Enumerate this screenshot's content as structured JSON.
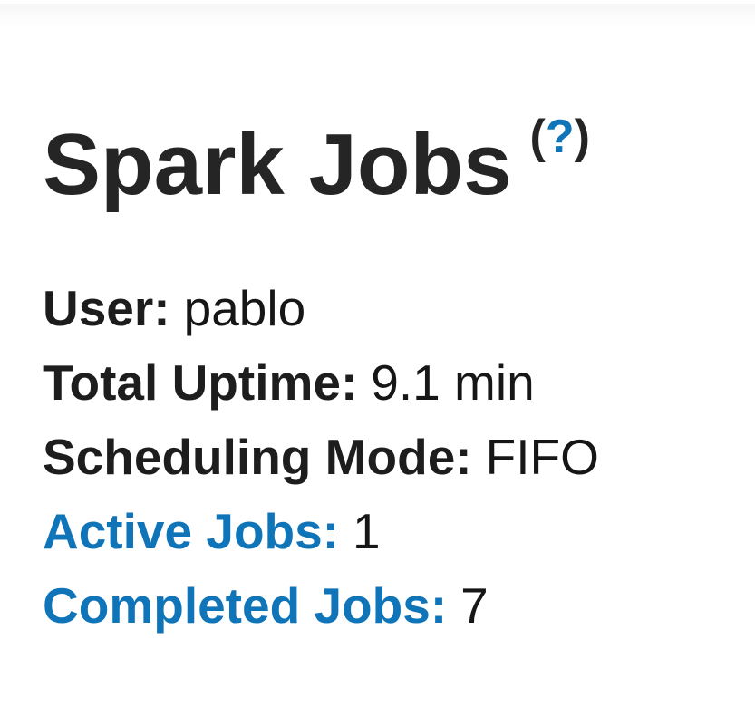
{
  "page": {
    "title": "Spark Jobs",
    "help": {
      "paren_open": "(",
      "symbol": "?",
      "paren_close": ")"
    }
  },
  "summary": {
    "items": [
      {
        "label": "User:",
        "value": "pablo"
      },
      {
        "label": "Total Uptime:",
        "value": "9.1 min"
      },
      {
        "label": "Scheduling Mode:",
        "value": "FIFO"
      },
      {
        "label": "Active Jobs:",
        "value": "1"
      },
      {
        "label": "Completed Jobs:",
        "value": "7"
      }
    ]
  },
  "colors": {
    "link_blue": "#0f74b8",
    "heading_text": "#252525",
    "body_text": "#161616"
  }
}
